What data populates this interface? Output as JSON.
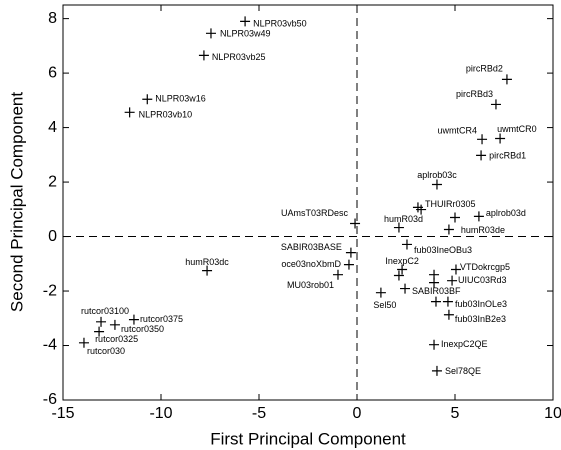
{
  "chart_data": {
    "type": "scatter",
    "xlabel": "First Principal Component",
    "ylabel": "Second Principal Component",
    "labels": [
      "NLPR03vb50",
      "NLPR03w49",
      "NLPR03vb25",
      "NLPR03w16",
      "NLPR03vb10",
      "pircRBd2",
      "pircRBd3",
      "uwmtCR4",
      "uwmtCR0",
      "pircRBd1",
      "aplrob03c",
      "THUIRr0305",
      "aplrob03d",
      "humR03d",
      "humR03de",
      "UAmsT03RDesc",
      "SABIR03BASE",
      "oce03noXbmD",
      "MU03rob01",
      "humR03dc",
      "fub03IneOBu3",
      "InexpC2",
      "VTDokrcgp5",
      "UIUC03Rd3",
      "SABIR03BF",
      "Sel50",
      "fub03InOLe3",
      "fub03InB2e3",
      "InexpC2QE",
      "Sel78QE",
      "rutcor03100",
      "rutcor0375",
      "rutcor0350",
      "rutcor0325",
      "rutcor030",
      null,
      null,
      null,
      null,
      null,
      null
    ],
    "x": [
      -5.71,
      -7.45,
      -7.81,
      -10.7,
      -11.6,
      7.65,
      7.09,
      6.38,
      7.3,
      6.33,
      4.08,
      3.11,
      6.22,
      2.14,
      4.69,
      -0.1,
      -0.31,
      -0.41,
      -0.97,
      -7.65,
      2.55,
      2.3,
      5.05,
      4.85,
      2.45,
      1.22,
      4.64,
      4.69,
      3.93,
      4.08,
      -13.06,
      -11.38,
      -12.35,
      -13.16,
      -13.93,
      3.27,
      5.0,
      2.14,
      3.93,
      3.93,
      4.03
    ],
    "values": [
      7.9,
      7.46,
      6.65,
      5.04,
      4.56,
      5.77,
      4.85,
      3.57,
      3.6,
      2.98,
      1.91,
      1.07,
      0.74,
      0.33,
      0.26,
      0.48,
      -0.59,
      -1.03,
      -1.4,
      -1.25,
      -0.29,
      -1.21,
      -1.21,
      -1.62,
      -1.91,
      -2.06,
      -2.39,
      -2.87,
      -3.97,
      -4.93,
      -3.13,
      -3.05,
      -3.24,
      -3.49,
      -3.9,
      0.99,
      0.7,
      -1.43,
      -1.4,
      -1.69,
      -2.39
    ],
    "color": "#000000",
    "xlim": [
      -15,
      10
    ],
    "ylim": [
      -6,
      8.5
    ],
    "xticks": [
      -15,
      -10,
      -5,
      0,
      5,
      10
    ],
    "yticks": [
      -6,
      -4,
      -2,
      0,
      2,
      4,
      6,
      8
    ],
    "zero_lines": true
  }
}
